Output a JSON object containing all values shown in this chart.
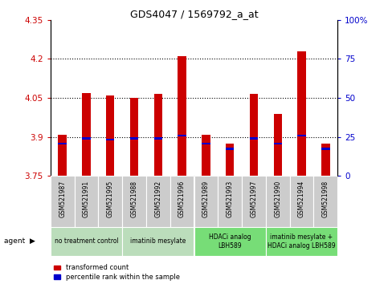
{
  "title": "GDS4047 / 1569792_a_at",
  "samples": [
    "GSM521987",
    "GSM521991",
    "GSM521995",
    "GSM521988",
    "GSM521992",
    "GSM521996",
    "GSM521989",
    "GSM521993",
    "GSM521997",
    "GSM521990",
    "GSM521994",
    "GSM521998"
  ],
  "bar_values": [
    3.91,
    4.07,
    4.06,
    4.05,
    4.065,
    4.21,
    3.91,
    3.875,
    4.065,
    3.99,
    4.23,
    3.875
  ],
  "percentile_values": [
    3.875,
    3.895,
    3.89,
    3.895,
    3.895,
    3.905,
    3.875,
    3.855,
    3.895,
    3.875,
    3.905,
    3.855
  ],
  "bar_bottom": 3.75,
  "ymin": 3.75,
  "ymax": 4.35,
  "yticks": [
    3.75,
    3.9,
    4.05,
    4.2,
    4.35
  ],
  "ytick_labels": [
    "3.75",
    "3.9",
    "4.05",
    "4.2",
    "4.35"
  ],
  "y2ticks": [
    0,
    25,
    50,
    75,
    100
  ],
  "y2tick_labels": [
    "0",
    "25",
    "50",
    "75",
    "100%"
  ],
  "bar_color": "#cc0000",
  "percentile_color": "#0000cc",
  "bg_color": "#ffffff",
  "agent_groups": [
    {
      "label": "no treatment control",
      "start": 0,
      "end": 3,
      "bg": "#bbddbb"
    },
    {
      "label": "imatinib mesylate",
      "start": 3,
      "end": 6,
      "bg": "#bbddbb"
    },
    {
      "label": "HDACi analog\nLBH589",
      "start": 6,
      "end": 9,
      "bg": "#77dd77"
    },
    {
      "label": "imatinib mesylate +\nHDACi analog LBH589",
      "start": 9,
      "end": 12,
      "bg": "#77dd77"
    }
  ],
  "sample_bg_color": "#cccccc",
  "grid_color": "#000000",
  "tick_color_left": "#cc0000",
  "tick_color_right": "#0000cc",
  "bar_width": 0.35
}
